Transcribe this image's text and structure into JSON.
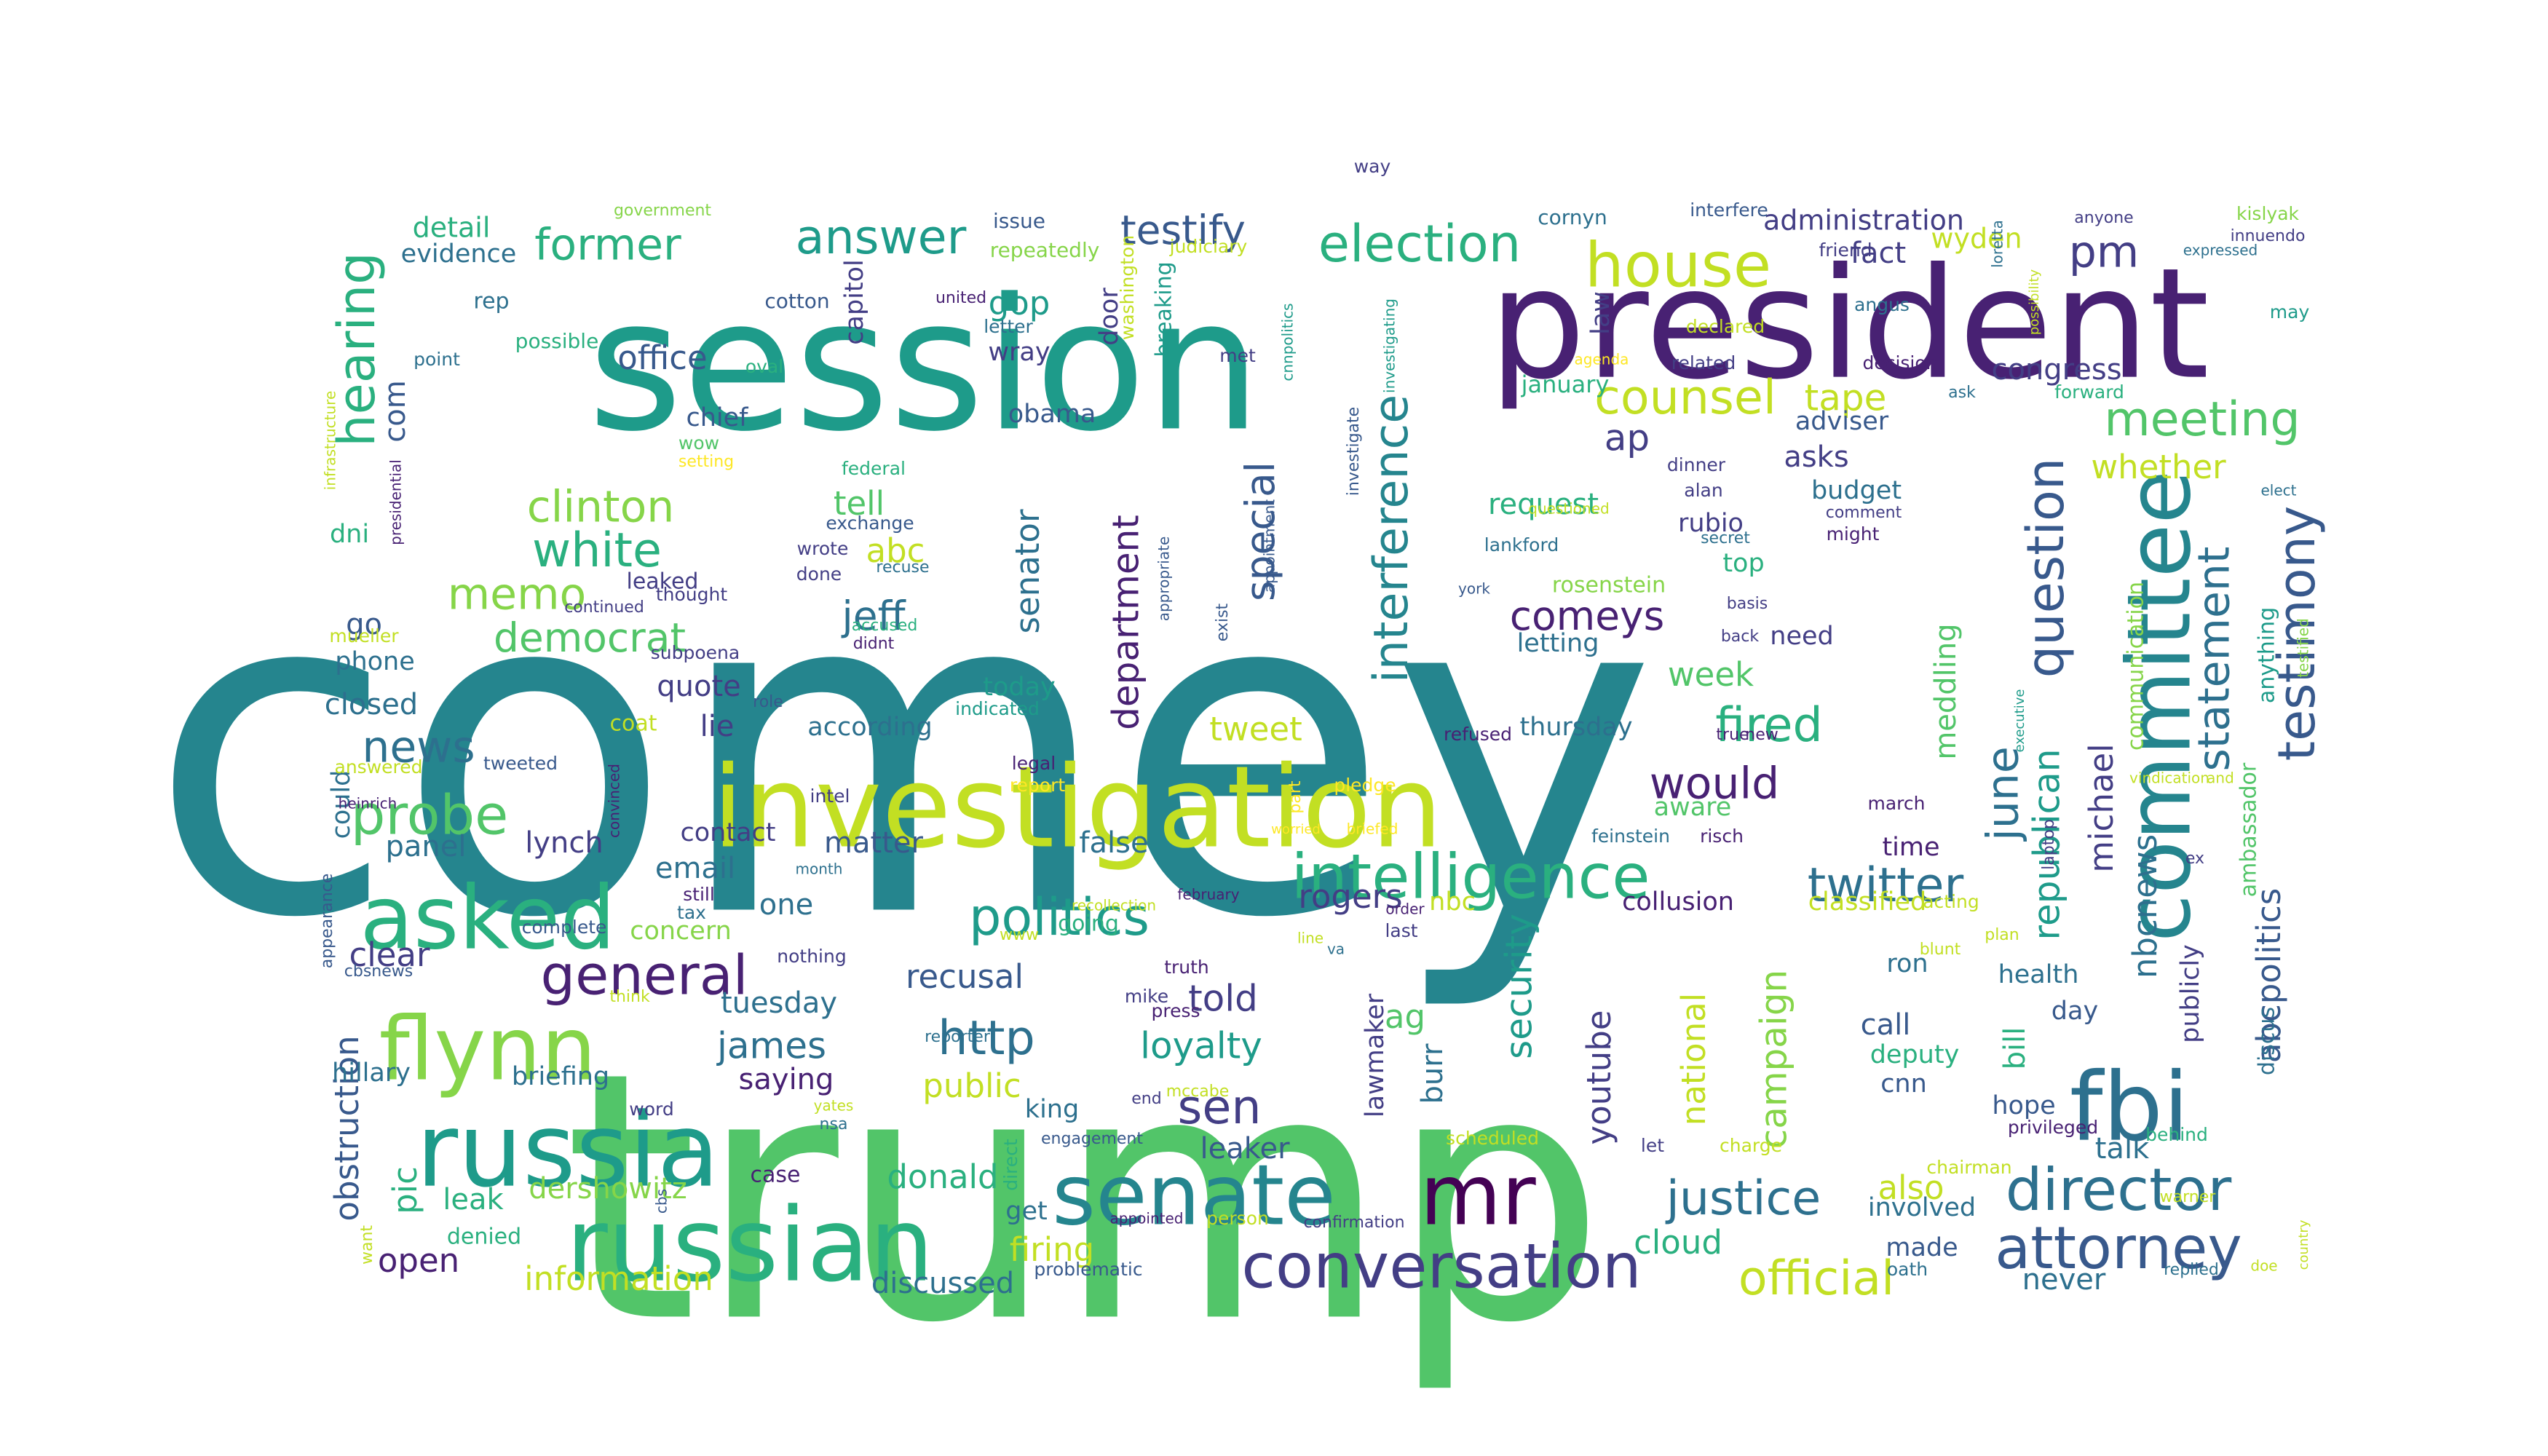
{
  "colors": {
    "background": "#ffffff",
    "palette": [
      "#440154",
      "#482173",
      "#433e85",
      "#38598c",
      "#2d708e",
      "#25858e",
      "#1e9b8a",
      "#2ab07f",
      "#52c569",
      "#86d549",
      "#c2df23",
      "#fde725"
    ]
  },
  "words": [
    {
      "text": "comey",
      "color": "#25858e"
    },
    {
      "text": "trump",
      "color": "#52c569"
    },
    {
      "text": "session",
      "color": "#1e9b8a"
    },
    {
      "text": "president",
      "color": "#482173"
    },
    {
      "text": "investigation",
      "color": "#c2df23"
    },
    {
      "text": "russian",
      "color": "#2ab07f"
    },
    {
      "text": "russia",
      "color": "#1e9b8a"
    },
    {
      "text": "senate",
      "color": "#25858e"
    },
    {
      "text": "committee",
      "color": "#25858e"
    },
    {
      "text": "fbi",
      "color": "#2d708e"
    },
    {
      "text": "mr",
      "color": "#440154"
    },
    {
      "text": "asked",
      "color": "#2ab07f"
    },
    {
      "text": "flynn",
      "color": "#86d549"
    },
    {
      "text": "intelligence",
      "color": "#2ab07f"
    },
    {
      "text": "conversation",
      "color": "#433e85"
    },
    {
      "text": "house",
      "color": "#c2df23"
    },
    {
      "text": "attorney",
      "color": "#38598c"
    },
    {
      "text": "director",
      "color": "#2d708e"
    },
    {
      "text": "testimony",
      "color": "#38598c"
    },
    {
      "text": "question",
      "color": "#38598c"
    },
    {
      "text": "election",
      "color": "#2ab07f"
    },
    {
      "text": "answer",
      "color": "#1e9b8a"
    },
    {
      "text": "former",
      "color": "#2ab07f"
    },
    {
      "text": "hearing",
      "color": "#2ab07f"
    },
    {
      "text": "politics",
      "color": "#1e9b8a"
    },
    {
      "text": "general",
      "color": "#482173"
    },
    {
      "text": "counsel",
      "color": "#c2df23"
    },
    {
      "text": "meeting",
      "color": "#52c569"
    },
    {
      "text": "probe",
      "color": "#52c569"
    },
    {
      "text": "justice",
      "color": "#2d708e"
    },
    {
      "text": "official",
      "color": "#c2df23"
    },
    {
      "text": "interference",
      "color": "#25858e"
    },
    {
      "text": "twitter",
      "color": "#2d708e"
    },
    {
      "text": "statement",
      "color": "#2d708e"
    },
    {
      "text": "clinton",
      "color": "#86d549"
    },
    {
      "text": "memo",
      "color": "#86d549"
    },
    {
      "text": "white",
      "color": "#2ab07f"
    },
    {
      "text": "fired",
      "color": "#2ab07f"
    },
    {
      "text": "would",
      "color": "#482173"
    },
    {
      "text": "news",
      "color": "#2d708e"
    },
    {
      "text": "http",
      "color": "#2d708e"
    },
    {
      "text": "sen",
      "color": "#433e85"
    },
    {
      "text": "jeff",
      "color": "#2d708e"
    },
    {
      "text": "pm",
      "color": "#433e85"
    },
    {
      "text": "testify",
      "color": "#38598c"
    },
    {
      "text": "tape",
      "color": "#c2df23"
    },
    {
      "text": "june",
      "color": "#2d708e"
    },
    {
      "text": "comeys",
      "color": "#482173"
    },
    {
      "text": "democrat",
      "color": "#52c569"
    },
    {
      "text": "special",
      "color": "#38598c"
    },
    {
      "text": "department",
      "color": "#482173"
    },
    {
      "text": "republican",
      "color": "#1e9b8a"
    },
    {
      "text": "michael",
      "color": "#433e85"
    },
    {
      "text": "security",
      "color": "#1e9b8a"
    },
    {
      "text": "campaign",
      "color": "#86d549"
    },
    {
      "text": "national",
      "color": "#c2df23"
    },
    {
      "text": "james",
      "color": "#2d708e"
    },
    {
      "text": "loyalty",
      "color": "#1e9b8a"
    },
    {
      "text": "told",
      "color": "#433e85"
    },
    {
      "text": "abcpolitics",
      "color": "#38598c"
    },
    {
      "text": "nbcnews",
      "color": "#2d708e"
    },
    {
      "text": "donald",
      "color": "#2ab07f"
    },
    {
      "text": "firing",
      "color": "#c2df23"
    },
    {
      "text": "dershowitz",
      "color": "#86d549"
    },
    {
      "text": "obstruction",
      "color": "#38598c"
    },
    {
      "text": "open",
      "color": "#482173"
    },
    {
      "text": "information",
      "color": "#c2df23"
    },
    {
      "text": "discussed",
      "color": "#2d708e"
    },
    {
      "text": "never",
      "color": "#2d708e"
    },
    {
      "text": "also",
      "color": "#c2df23"
    },
    {
      "text": "cloud",
      "color": "#2ab07f"
    },
    {
      "text": "youtube",
      "color": "#433e85"
    },
    {
      "text": "leaker",
      "color": "#38598c"
    },
    {
      "text": "public",
      "color": "#c2df23"
    },
    {
      "text": "recusal",
      "color": "#38598c"
    },
    {
      "text": "rogers",
      "color": "#433e85"
    },
    {
      "text": "tweet",
      "color": "#c2df23"
    },
    {
      "text": "senator",
      "color": "#2d708e"
    },
    {
      "text": "office",
      "color": "#38598c"
    },
    {
      "text": "congress",
      "color": "#433e85"
    },
    {
      "text": "gop",
      "color": "#1e9b8a"
    },
    {
      "text": "week",
      "color": "#52c569"
    },
    {
      "text": "ap",
      "color": "#433e85"
    },
    {
      "text": "tell",
      "color": "#52c569"
    },
    {
      "text": "abc",
      "color": "#c2df23"
    },
    {
      "text": "whether",
      "color": "#c2df23"
    },
    {
      "text": "lynch",
      "color": "#433e85"
    },
    {
      "text": "email",
      "color": "#2d708e"
    },
    {
      "text": "panel",
      "color": "#2d708e"
    },
    {
      "text": "matter",
      "color": "#38598c"
    },
    {
      "text": "clear",
      "color": "#433e85"
    },
    {
      "text": "collusion",
      "color": "#482173"
    },
    {
      "text": "one",
      "color": "#2d708e"
    },
    {
      "text": "com",
      "color": "#38598c"
    },
    {
      "text": "pic",
      "color": "#2ab07f"
    },
    {
      "text": "go",
      "color": "#38598c"
    },
    {
      "text": "ag",
      "color": "#52c569"
    },
    {
      "text": "fact",
      "color": "#433e85"
    },
    {
      "text": "saying",
      "color": "#482173"
    },
    {
      "text": "burr",
      "color": "#2d708e"
    },
    {
      "text": "lawmaker",
      "color": "#433e85"
    },
    {
      "text": "tuesday",
      "color": "#2d708e"
    },
    {
      "text": "meddling",
      "color": "#52c569"
    },
    {
      "text": "administration",
      "color": "#433e85"
    },
    {
      "text": "wyden",
      "color": "#c2df23"
    },
    {
      "text": "detail",
      "color": "#2ab07f"
    },
    {
      "text": "evidence",
      "color": "#2d708e"
    },
    {
      "text": "quote",
      "color": "#433e85"
    },
    {
      "text": "lie",
      "color": "#433e85"
    },
    {
      "text": "thursday",
      "color": "#2d708e"
    },
    {
      "text": "leak",
      "color": "#2ab07f"
    },
    {
      "text": "hillary",
      "color": "#2d708e"
    },
    {
      "text": "briefing",
      "color": "#2d708e"
    },
    {
      "text": "king",
      "color": "#2d708e"
    },
    {
      "text": "nbc",
      "color": "#c2df23"
    },
    {
      "text": "false",
      "color": "#2d708e"
    },
    {
      "text": "concern",
      "color": "#86d549"
    },
    {
      "text": "classified",
      "color": "#c2df23"
    },
    {
      "text": "deputy",
      "color": "#2ab07f"
    },
    {
      "text": "ron",
      "color": "#2d708e"
    },
    {
      "text": "cnn",
      "color": "#38598c"
    },
    {
      "text": "call",
      "color": "#38598c"
    },
    {
      "text": "hope",
      "color": "#38598c"
    },
    {
      "text": "talk",
      "color": "#2d708e"
    },
    {
      "text": "made",
      "color": "#38598c"
    },
    {
      "text": "involved",
      "color": "#2d708e"
    },
    {
      "text": "phone",
      "color": "#2d708e"
    },
    {
      "text": "closed",
      "color": "#2d708e"
    },
    {
      "text": "chief",
      "color": "#38598c"
    },
    {
      "text": "obama",
      "color": "#38598c"
    },
    {
      "text": "asks",
      "color": "#433e85"
    },
    {
      "text": "adviser",
      "color": "#38598c"
    },
    {
      "text": "budget",
      "color": "#2d708e"
    },
    {
      "text": "request",
      "color": "#2ab07f"
    },
    {
      "text": "rubio",
      "color": "#433e85"
    },
    {
      "text": "top",
      "color": "#2ab07f"
    },
    {
      "text": "letting",
      "color": "#2d708e"
    },
    {
      "text": "rosenstein",
      "color": "#86d549"
    },
    {
      "text": "need",
      "color": "#433e85"
    },
    {
      "text": "today",
      "color": "#1e9b8a"
    },
    {
      "text": "according",
      "color": "#2d708e"
    },
    {
      "text": "time",
      "color": "#482173"
    },
    {
      "text": "day",
      "color": "#38598c"
    },
    {
      "text": "health",
      "color": "#2d708e"
    },
    {
      "text": "bill",
      "color": "#2ab07f"
    },
    {
      "text": "publicly",
      "color": "#433e85"
    },
    {
      "text": "discus",
      "color": "#2d708e"
    },
    {
      "text": "ambassador",
      "color": "#52c569"
    },
    {
      "text": "anything",
      "color": "#1e9b8a"
    },
    {
      "text": "communication",
      "color": "#86d549"
    },
    {
      "text": "contact",
      "color": "#433e85"
    },
    {
      "text": "aware",
      "color": "#52c569"
    },
    {
      "text": "get",
      "color": "#2d708e"
    },
    {
      "text": "going",
      "color": "#2ab07f"
    },
    {
      "text": "case",
      "color": "#482173"
    },
    {
      "text": "denied",
      "color": "#2ab07f"
    },
    {
      "text": "could",
      "color": "#2d708e"
    },
    {
      "text": "leaked",
      "color": "#433e85"
    },
    {
      "text": "dni",
      "color": "#2ab07f"
    },
    {
      "text": "capitol",
      "color": "#433e85"
    },
    {
      "text": "wray",
      "color": "#433e85"
    },
    {
      "text": "door",
      "color": "#433e85"
    },
    {
      "text": "breaking",
      "color": "#1e9b8a"
    },
    {
      "text": "law",
      "color": "#433e85"
    },
    {
      "text": "january",
      "color": "#2ab07f"
    },
    {
      "text": "coat",
      "color": "#c2df23"
    },
    {
      "text": "cotton",
      "color": "#38598c"
    },
    {
      "text": "rep",
      "color": "#2d708e"
    },
    {
      "text": "point",
      "color": "#2d708e"
    },
    {
      "text": "possible",
      "color": "#2ab07f"
    },
    {
      "text": "government",
      "color": "#86d549"
    },
    {
      "text": "issue",
      "color": "#38598c"
    },
    {
      "text": "repeatedly",
      "color": "#86d549"
    },
    {
      "text": "judiciary",
      "color": "#c2df23"
    },
    {
      "text": "washington",
      "color": "#c2df23"
    },
    {
      "text": "way",
      "color": "#433e85"
    },
    {
      "text": "cornyn",
      "color": "#2d708e"
    },
    {
      "text": "interfere",
      "color": "#38598c"
    },
    {
      "text": "friend",
      "color": "#433e85"
    },
    {
      "text": "kislyak",
      "color": "#86d549"
    },
    {
      "text": "anyone",
      "color": "#433e85"
    },
    {
      "text": "innuendo",
      "color": "#433e85"
    },
    {
      "text": "expressed",
      "color": "#2d708e"
    },
    {
      "text": "may",
      "color": "#1e9b8a"
    },
    {
      "text": "united",
      "color": "#482173"
    },
    {
      "text": "letter",
      "color": "#2d708e"
    },
    {
      "text": "angus",
      "color": "#2d708e"
    },
    {
      "text": "declared",
      "color": "#c2df23"
    },
    {
      "text": "related",
      "color": "#433e85"
    },
    {
      "text": "decision",
      "color": "#482173"
    },
    {
      "text": "ask",
      "color": "#2d708e"
    },
    {
      "text": "forward",
      "color": "#2ab07f"
    },
    {
      "text": "possibility",
      "color": "#c2df23"
    },
    {
      "text": "met",
      "color": "#433e85"
    },
    {
      "text": "agenda",
      "color": "#fde725"
    },
    {
      "text": "cnnpolitics",
      "color": "#1e9b8a"
    },
    {
      "text": "investigating",
      "color": "#1e9b8a"
    },
    {
      "text": "investigate",
      "color": "#38598c"
    },
    {
      "text": "appointment",
      "color": "#38598c"
    },
    {
      "text": "appropriate",
      "color": "#38598c"
    },
    {
      "text": "oval",
      "color": "#2ab07f"
    },
    {
      "text": "infrastructure",
      "color": "#c2df23"
    },
    {
      "text": "wow",
      "color": "#52c569"
    },
    {
      "text": "setting",
      "color": "#fde725"
    },
    {
      "text": "presidential",
      "color": "#482173"
    },
    {
      "text": "federal",
      "color": "#2ab07f"
    },
    {
      "text": "exchange",
      "color": "#38598c"
    },
    {
      "text": "wrote",
      "color": "#433e85"
    },
    {
      "text": "done",
      "color": "#433e85"
    },
    {
      "text": "recuse",
      "color": "#2d708e"
    },
    {
      "text": "accused",
      "color": "#2ab07f"
    },
    {
      "text": "didnt",
      "color": "#482173"
    },
    {
      "text": "continued",
      "color": "#433e85"
    },
    {
      "text": "thought",
      "color": "#433e85"
    },
    {
      "text": "subpoena",
      "color": "#433e85"
    },
    {
      "text": "mueller",
      "color": "#c2df23"
    },
    {
      "text": "role",
      "color": "#38598c"
    },
    {
      "text": "indicated",
      "color": "#1e9b8a"
    },
    {
      "text": "exist",
      "color": "#38598c"
    },
    {
      "text": "questioned",
      "color": "#c2df23"
    },
    {
      "text": "lankford",
      "color": "#2d708e"
    },
    {
      "text": "dinner",
      "color": "#433e85"
    },
    {
      "text": "alan",
      "color": "#433e85"
    },
    {
      "text": "secret",
      "color": "#2d708e"
    },
    {
      "text": "comment",
      "color": "#433e85"
    },
    {
      "text": "might",
      "color": "#482173"
    },
    {
      "text": "elect",
      "color": "#2d708e"
    },
    {
      "text": "york",
      "color": "#38598c"
    },
    {
      "text": "basis",
      "color": "#433e85"
    },
    {
      "text": "back",
      "color": "#433e85"
    },
    {
      "text": "refused",
      "color": "#482173"
    },
    {
      "text": "true",
      "color": "#482173"
    },
    {
      "text": "new",
      "color": "#482173"
    },
    {
      "text": "executive",
      "color": "#1e9b8a"
    },
    {
      "text": "loretta",
      "color": "#2d708e"
    },
    {
      "text": "testified",
      "color": "#86d549"
    },
    {
      "text": "answered",
      "color": "#c2df23"
    },
    {
      "text": "tweeted",
      "color": "#38598c"
    },
    {
      "text": "convinced",
      "color": "#482173"
    },
    {
      "text": "heinrich",
      "color": "#482173"
    },
    {
      "text": "intel",
      "color": "#433e85"
    },
    {
      "text": "legal",
      "color": "#482173"
    },
    {
      "text": "report",
      "color": "#fde725"
    },
    {
      "text": "part",
      "color": "#fde725"
    },
    {
      "text": "worried",
      "color": "#fde725"
    },
    {
      "text": "briefed",
      "color": "#fde725"
    },
    {
      "text": "pledge",
      "color": "#fde725"
    },
    {
      "text": "feinstein",
      "color": "#2d708e"
    },
    {
      "text": "risch",
      "color": "#482173"
    },
    {
      "text": "march",
      "color": "#482173"
    },
    {
      "text": "laptop",
      "color": "#433e85"
    },
    {
      "text": "vindication",
      "color": "#c2df23"
    },
    {
      "text": "and",
      "color": "#c2df23"
    },
    {
      "text": "ex",
      "color": "#433e85"
    },
    {
      "text": "appearance",
      "color": "#38598c"
    },
    {
      "text": "cbsnews",
      "color": "#38598c"
    },
    {
      "text": "still",
      "color": "#482173"
    },
    {
      "text": "tax",
      "color": "#2d708e"
    },
    {
      "text": "month",
      "color": "#2d708e"
    },
    {
      "text": "complete",
      "color": "#38598c"
    },
    {
      "text": "www",
      "color": "#c2df23"
    },
    {
      "text": "recollection",
      "color": "#c2df23"
    },
    {
      "text": "february",
      "color": "#482173"
    },
    {
      "text": "order",
      "color": "#482173"
    },
    {
      "text": "last",
      "color": "#433e85"
    },
    {
      "text": "acting",
      "color": "#c2df23"
    },
    {
      "text": "plan",
      "color": "#c2df23"
    },
    {
      "text": "nothing",
      "color": "#433e85"
    },
    {
      "text": "think",
      "color": "#c2df23"
    },
    {
      "text": "truth",
      "color": "#482173"
    },
    {
      "text": "line",
      "color": "#c2df23"
    },
    {
      "text": "va",
      "color": "#2d708e"
    },
    {
      "text": "mike",
      "color": "#433e85"
    },
    {
      "text": "press",
      "color": "#482173"
    },
    {
      "text": "reporter",
      "color": "#2d708e"
    },
    {
      "text": "mccabe",
      "color": "#c2df23"
    },
    {
      "text": "end",
      "color": "#433e85"
    },
    {
      "text": "yates",
      "color": "#c2df23"
    },
    {
      "text": "nsa",
      "color": "#2d708e"
    },
    {
      "text": "word",
      "color": "#433e85"
    },
    {
      "text": "engagement",
      "color": "#38598c"
    },
    {
      "text": "direct",
      "color": "#2ab07f"
    },
    {
      "text": "scheduled",
      "color": "#c2df23"
    },
    {
      "text": "let",
      "color": "#433e85"
    },
    {
      "text": "charge",
      "color": "#c2df23"
    },
    {
      "text": "blunt",
      "color": "#c2df23"
    },
    {
      "text": "privileged",
      "color": "#482173"
    },
    {
      "text": "behind",
      "color": "#2ab07f"
    },
    {
      "text": "chairman",
      "color": "#c2df23"
    },
    {
      "text": "warner",
      "color": "#c2df23"
    },
    {
      "text": "appointed",
      "color": "#482173"
    },
    {
      "text": "person",
      "color": "#c2df23"
    },
    {
      "text": "confirmation",
      "color": "#433e85"
    },
    {
      "text": "problematic",
      "color": "#38598c"
    },
    {
      "text": "want",
      "color": "#c2df23"
    },
    {
      "text": "cbs",
      "color": "#38598c"
    },
    {
      "text": "oath",
      "color": "#2d708e"
    },
    {
      "text": "replied",
      "color": "#2d708e"
    },
    {
      "text": "doe",
      "color": "#c2df23"
    },
    {
      "text": "country",
      "color": "#c2df23"
    }
  ]
}
